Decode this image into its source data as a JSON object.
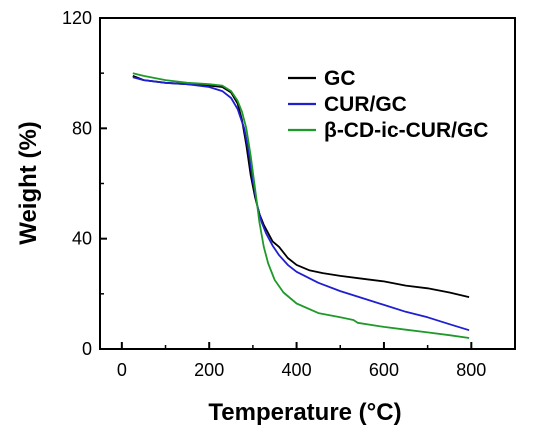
{
  "chart_data": {
    "type": "line",
    "xlabel": "Temperature (°C)",
    "ylabel": "Weight (%)",
    "xlim": [
      -50,
      900
    ],
    "ylim": [
      0,
      120
    ],
    "xticks": [
      0,
      200,
      400,
      600,
      800
    ],
    "yticks": [
      0,
      40,
      80,
      120
    ],
    "legend_position": "top-right",
    "grid": false,
    "series": [
      {
        "name": "GC",
        "color": "#000000",
        "x": [
          25,
          50,
          100,
          150,
          200,
          230,
          250,
          265,
          275,
          285,
          295,
          305,
          315,
          325,
          335,
          345,
          360,
          380,
          400,
          430,
          460,
          500,
          550,
          600,
          650,
          700,
          750,
          795
        ],
        "y": [
          99,
          97.5,
          96.5,
          96,
          95.5,
          95,
          93,
          89,
          83,
          74,
          63,
          55,
          49,
          45,
          42,
          39,
          37,
          33,
          30.5,
          28.5,
          27.5,
          26.5,
          25.5,
          24.5,
          23,
          22,
          20.5,
          18.8
        ]
      },
      {
        "name": "CUR/GC",
        "color": "#1f1fd0",
        "x": [
          25,
          50,
          100,
          150,
          200,
          230,
          250,
          265,
          280,
          290,
          300,
          310,
          320,
          330,
          345,
          360,
          380,
          400,
          450,
          500,
          550,
          600,
          650,
          700,
          750,
          795
        ],
        "y": [
          98.5,
          97.5,
          96.5,
          96,
          95,
          93.5,
          91,
          87,
          80,
          72,
          61,
          52,
          46,
          42,
          37.5,
          34,
          30.5,
          28,
          24,
          21,
          18.5,
          16,
          13.5,
          11.5,
          9,
          6.8
        ]
      },
      {
        "name": "β-CD-ic-CUR/GC",
        "color": "#1f9a2a",
        "x": [
          25,
          50,
          100,
          150,
          200,
          230,
          250,
          265,
          275,
          285,
          295,
          305,
          315,
          325,
          335,
          350,
          370,
          400,
          450,
          500,
          530,
          540,
          600,
          650,
          700,
          750,
          795
        ],
        "y": [
          100,
          99,
          97.5,
          96.5,
          96,
          95.5,
          93.5,
          90,
          86,
          80,
          70,
          58,
          46,
          37,
          31,
          25,
          20.5,
          16.5,
          13,
          11.5,
          10.5,
          9.5,
          8,
          7,
          6,
          5,
          4
        ]
      }
    ]
  }
}
